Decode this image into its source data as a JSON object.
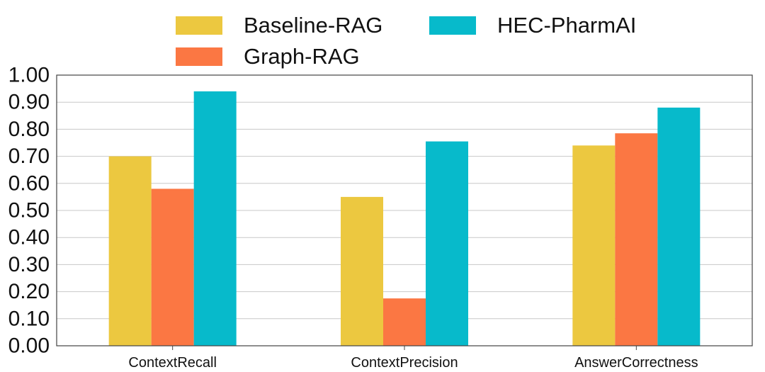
{
  "chart_data": {
    "type": "bar",
    "title": "",
    "xlabel": "",
    "ylabel": "",
    "categories": [
      "ContextRecall",
      "ContextPrecision",
      "AnswerCorrectness"
    ],
    "series": [
      {
        "name": "Baseline-RAG",
        "color": "#ECC840",
        "values": [
          0.7,
          0.55,
          0.74
        ]
      },
      {
        "name": "Graph-RAG",
        "color": "#FB7743",
        "values": [
          0.58,
          0.175,
          0.785
        ]
      },
      {
        "name": "HEC-PharmAI",
        "color": "#07BACB",
        "values": [
          0.94,
          0.755,
          0.88
        ]
      }
    ],
    "ylim": [
      0,
      1.0
    ],
    "yticks": [
      "0.00",
      "0.10",
      "0.20",
      "0.30",
      "0.40",
      "0.50",
      "0.60",
      "0.70",
      "0.80",
      "0.90",
      "1.00"
    ],
    "grid": "horizontal",
    "legend_position": "top"
  }
}
